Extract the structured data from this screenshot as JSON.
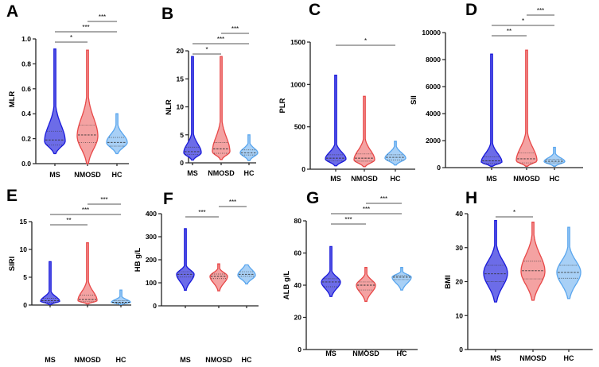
{
  "colors": {
    "MS": {
      "stroke": "#1a1adb",
      "fill": "#6c6ce8"
    },
    "NMOSD": {
      "stroke": "#e84848",
      "fill": "#f4a2a2"
    },
    "HC": {
      "stroke": "#5aa6ee",
      "fill": "#a8d0f6"
    }
  },
  "chart_data": [
    {
      "type": "violin",
      "panel": "A",
      "ylabel": "MLR",
      "ylim": [
        0,
        1.0
      ],
      "yticks": [
        "0.0",
        "0.2",
        "0.4",
        "0.6",
        "0.8",
        "1.0"
      ],
      "ytick_values": [
        0,
        0.2,
        0.4,
        0.6,
        0.8,
        1.0
      ],
      "categories": [
        "MS",
        "NMOSD",
        "HC"
      ],
      "groups": [
        {
          "name": "MS",
          "min": 0.08,
          "max": 0.92,
          "q1": 0.15,
          "median": 0.19,
          "q3": 0.26,
          "mode": 0.18
        },
        {
          "name": "NMOSD",
          "min": 0.0,
          "max": 0.91,
          "q1": 0.17,
          "median": 0.23,
          "q3": 0.31,
          "mode": 0.22
        },
        {
          "name": "HC",
          "min": 0.08,
          "max": 0.4,
          "q1": 0.14,
          "median": 0.17,
          "q3": 0.21,
          "mode": 0.17
        }
      ],
      "comparisons": [
        {
          "from": "MS",
          "to": "NMOSD",
          "label": "*",
          "level": 0
        },
        {
          "from": "MS",
          "to": "HC",
          "label": "***",
          "level": 1
        },
        {
          "from": "NMOSD",
          "to": "HC",
          "label": "***",
          "level": 2
        }
      ]
    },
    {
      "type": "violin",
      "panel": "B",
      "ylabel": "NLR",
      "ylim": [
        0,
        20
      ],
      "yticks": [
        "0",
        "5",
        "10",
        "15",
        "20"
      ],
      "ytick_values": [
        0,
        5,
        10,
        15,
        20
      ],
      "categories": [
        "MS",
        "NMOSD",
        "HC"
      ],
      "groups": [
        {
          "name": "MS",
          "min": 0.5,
          "max": 19,
          "q1": 1.5,
          "median": 2.0,
          "q3": 2.8,
          "mode": 1.8
        },
        {
          "name": "NMOSD",
          "min": 0.6,
          "max": 19,
          "q1": 1.7,
          "median": 2.5,
          "q3": 3.6,
          "mode": 2.0
        },
        {
          "name": "HC",
          "min": 0.4,
          "max": 5,
          "q1": 1.4,
          "median": 1.8,
          "q3": 2.3,
          "mode": 1.8
        }
      ],
      "comparisons": [
        {
          "from": "MS",
          "to": "NMOSD",
          "label": "*",
          "level": 0
        },
        {
          "from": "MS",
          "to": "HC",
          "label": "***",
          "level": 1
        },
        {
          "from": "NMOSD",
          "to": "HC",
          "label": "***",
          "level": 2
        }
      ]
    },
    {
      "type": "violin",
      "panel": "C",
      "ylabel": "PLR",
      "ylim": [
        0,
        1500
      ],
      "yticks": [
        "0",
        "500",
        "1000",
        "1500"
      ],
      "ytick_values": [
        0,
        500,
        1000,
        1500
      ],
      "categories": [
        "MS",
        "NMOSD",
        "HC"
      ],
      "groups": [
        {
          "name": "MS",
          "min": 40,
          "max": 1110,
          "q1": 100,
          "median": 130,
          "q3": 170,
          "mode": 120
        },
        {
          "name": "NMOSD",
          "min": 30,
          "max": 860,
          "q1": 95,
          "median": 130,
          "q3": 180,
          "mode": 110
        },
        {
          "name": "HC",
          "min": 50,
          "max": 330,
          "q1": 110,
          "median": 140,
          "q3": 170,
          "mode": 130
        }
      ],
      "comparisons": [
        {
          "from": "MS",
          "to": "HC",
          "label": "*",
          "level": 0
        }
      ]
    },
    {
      "type": "violin",
      "panel": "D",
      "ylabel": "SII",
      "ylim": [
        0,
        10000
      ],
      "yticks": [
        "0",
        "2000",
        "4000",
        "6000",
        "8000",
        "10000"
      ],
      "ytick_values": [
        0,
        2000,
        4000,
        6000,
        8000,
        10000
      ],
      "categories": [
        "MS",
        "NMOSD",
        "HC"
      ],
      "groups": [
        {
          "name": "MS",
          "min": 100,
          "max": 8400,
          "q1": 300,
          "median": 500,
          "q3": 800,
          "mode": 400
        },
        {
          "name": "NMOSD",
          "min": 100,
          "max": 8700,
          "q1": 350,
          "median": 650,
          "q3": 1100,
          "mode": 500
        },
        {
          "name": "HC",
          "min": 100,
          "max": 1500,
          "q1": 350,
          "median": 470,
          "q3": 620,
          "mode": 450
        }
      ],
      "comparisons": [
        {
          "from": "MS",
          "to": "NMOSD",
          "label": "**",
          "level": 0
        },
        {
          "from": "MS",
          "to": "HC",
          "label": "*",
          "level": 1
        },
        {
          "from": "NMOSD",
          "to": "HC",
          "label": "***",
          "level": 2
        }
      ]
    },
    {
      "type": "violin",
      "panel": "E",
      "ylabel": "SIRI",
      "ylim": [
        0,
        15
      ],
      "yticks": [
        "0",
        "5",
        "10",
        "15"
      ],
      "ytick_values": [
        0,
        5,
        10,
        15
      ],
      "categories": [
        "MS",
        "NMOSD",
        "HC"
      ],
      "groups": [
        {
          "name": "MS",
          "min": 0.1,
          "max": 7.8,
          "q1": 0.5,
          "median": 0.8,
          "q3": 1.2,
          "mode": 0.7
        },
        {
          "name": "NMOSD",
          "min": 0.2,
          "max": 11.2,
          "q1": 0.6,
          "median": 1.0,
          "q3": 1.8,
          "mode": 0.8
        },
        {
          "name": "HC",
          "min": 0.1,
          "max": 2.7,
          "q1": 0.3,
          "median": 0.5,
          "q3": 0.8,
          "mode": 0.5
        }
      ],
      "comparisons": [
        {
          "from": "MS",
          "to": "NMOSD",
          "label": "**",
          "level": 0
        },
        {
          "from": "MS",
          "to": "HC",
          "label": "***",
          "level": 1
        },
        {
          "from": "NMOSD",
          "to": "HC",
          "label": "***",
          "level": 2
        }
      ]
    },
    {
      "type": "violin",
      "panel": "F",
      "ylabel": "HB g/L",
      "ylim": [
        0,
        400
      ],
      "yticks": [
        "0",
        "100",
        "200",
        "300",
        "400"
      ],
      "ytick_values": [
        0,
        100,
        200,
        300,
        400
      ],
      "categories": [
        "MS",
        "NMOSD",
        "HC"
      ],
      "groups": [
        {
          "name": "MS",
          "min": 68,
          "max": 335,
          "q1": 125,
          "median": 137,
          "q3": 148,
          "mode": 137
        },
        {
          "name": "NMOSD",
          "min": 65,
          "max": 182,
          "q1": 118,
          "median": 128,
          "q3": 138,
          "mode": 128
        },
        {
          "name": "HC",
          "min": 95,
          "max": 178,
          "q1": 128,
          "median": 137,
          "q3": 148,
          "mode": 133
        }
      ],
      "comparisons": [
        {
          "from": "MS",
          "to": "NMOSD",
          "label": "***",
          "level": 0
        },
        {
          "from": "NMOSD",
          "to": "HC",
          "label": "***",
          "level": 1
        }
      ]
    },
    {
      "type": "violin",
      "panel": "G",
      "ylabel": "ALB g/L",
      "ylim": [
        0,
        80
      ],
      "yticks": [
        "0",
        "20",
        "40",
        "60",
        "80"
      ],
      "ytick_values": [
        0,
        20,
        40,
        60,
        80
      ],
      "categories": [
        "MS",
        "NMOSD",
        "HC"
      ],
      "groups": [
        {
          "name": "MS",
          "min": 33,
          "max": 64,
          "q1": 39,
          "median": 42,
          "q3": 44,
          "mode": 42
        },
        {
          "name": "NMOSD",
          "min": 30,
          "max": 51,
          "q1": 37,
          "median": 40,
          "q3": 42,
          "mode": 40
        },
        {
          "name": "HC",
          "min": 37,
          "max": 51,
          "q1": 43.5,
          "median": 45,
          "q3": 46,
          "mode": 45
        }
      ],
      "comparisons": [
        {
          "from": "MS",
          "to": "NMOSD",
          "label": "***",
          "level": 0
        },
        {
          "from": "MS",
          "to": "HC",
          "label": "***",
          "level": 1
        },
        {
          "from": "NMOSD",
          "to": "HC",
          "label": "***",
          "level": 2
        }
      ]
    },
    {
      "type": "violin",
      "panel": "H",
      "ylabel": "BMI",
      "ylim": [
        0,
        40
      ],
      "yticks": [
        "0",
        "10",
        "20",
        "30",
        "40"
      ],
      "ytick_values": [
        0,
        10,
        20,
        30,
        40
      ],
      "categories": [
        "MS",
        "NMOSD",
        "HC"
      ],
      "groups": [
        {
          "name": "MS",
          "min": 14,
          "max": 38,
          "q1": 20,
          "median": 22.3,
          "q3": 24.8,
          "mode": 22.5
        },
        {
          "name": "NMOSD",
          "min": 14.5,
          "max": 37.5,
          "q1": 20.8,
          "median": 23.2,
          "q3": 26,
          "mode": 23
        },
        {
          "name": "HC",
          "min": 15,
          "max": 36,
          "q1": 21,
          "median": 22.7,
          "q3": 24.8,
          "mode": 22.7
        }
      ],
      "comparisons": [
        {
          "from": "MS",
          "to": "NMOSD",
          "label": "*",
          "level": 0
        }
      ]
    }
  ]
}
